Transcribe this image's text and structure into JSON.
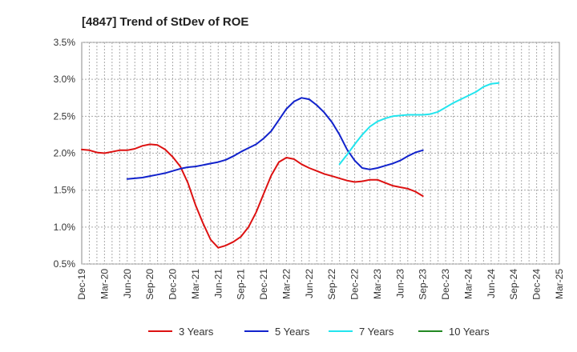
{
  "chart_data": {
    "type": "line",
    "title": "[4847]  Trend of StDev of ROE",
    "xlabel": "",
    "ylabel": "",
    "ylim": [
      0.5,
      3.5
    ],
    "y_ticks": [
      "3.5%",
      "3.0%",
      "2.5%",
      "2.0%",
      "1.5%",
      "1.0%",
      "0.5%"
    ],
    "y_tick_values": [
      3.5,
      3.0,
      2.5,
      2.0,
      1.5,
      1.0,
      0.5
    ],
    "x_ticks": [
      "Dec-19",
      "Mar-20",
      "Jun-20",
      "Sep-20",
      "Dec-20",
      "Mar-21",
      "Jun-21",
      "Sep-21",
      "Dec-21",
      "Mar-22",
      "Jun-22",
      "Sep-22",
      "Dec-22",
      "Mar-23",
      "Jun-23",
      "Sep-23",
      "Dec-23",
      "Mar-24",
      "Jun-24",
      "Sep-24",
      "Dec-24",
      "Mar-25"
    ],
    "grid": true,
    "legend_position": "bottom",
    "series": [
      {
        "name": "3 Years",
        "color": "#dd1111",
        "start_index": 0,
        "values": [
          2.05,
          2.04,
          2.01,
          2.0,
          2.02,
          2.04,
          2.04,
          2.06,
          2.1,
          2.12,
          2.11,
          2.05,
          1.95,
          1.82,
          1.6,
          1.3,
          1.05,
          0.83,
          0.72,
          0.75,
          0.8,
          0.87,
          1.0,
          1.2,
          1.45,
          1.7,
          1.88,
          1.94,
          1.92,
          1.85,
          1.8,
          1.76,
          1.72,
          1.69,
          1.66,
          1.63,
          1.61,
          1.62,
          1.64,
          1.64,
          1.6,
          1.56,
          1.54,
          1.52,
          1.48,
          1.42
        ]
      },
      {
        "name": "5 Years",
        "color": "#1122cc",
        "start_index": 6,
        "values": [
          1.65,
          1.66,
          1.67,
          1.69,
          1.71,
          1.73,
          1.76,
          1.79,
          1.81,
          1.82,
          1.84,
          1.86,
          1.88,
          1.91,
          1.96,
          2.02,
          2.07,
          2.12,
          2.2,
          2.3,
          2.45,
          2.6,
          2.7,
          2.75,
          2.73,
          2.65,
          2.55,
          2.42,
          2.25,
          2.05,
          1.9,
          1.8,
          1.78,
          1.8,
          1.83,
          1.86,
          1.9,
          1.96,
          2.01,
          2.04
        ]
      },
      {
        "name": "7 Years",
        "color": "#22e5ee",
        "start_index": 34,
        "values": [
          1.85,
          1.98,
          2.12,
          2.25,
          2.36,
          2.43,
          2.47,
          2.5,
          2.51,
          2.52,
          2.52,
          2.52,
          2.53,
          2.56,
          2.62,
          2.68,
          2.73,
          2.78,
          2.83,
          2.9,
          2.94,
          2.95
        ]
      },
      {
        "name": "10 Years",
        "color": "#228822",
        "start_index": 0,
        "values": []
      }
    ]
  }
}
